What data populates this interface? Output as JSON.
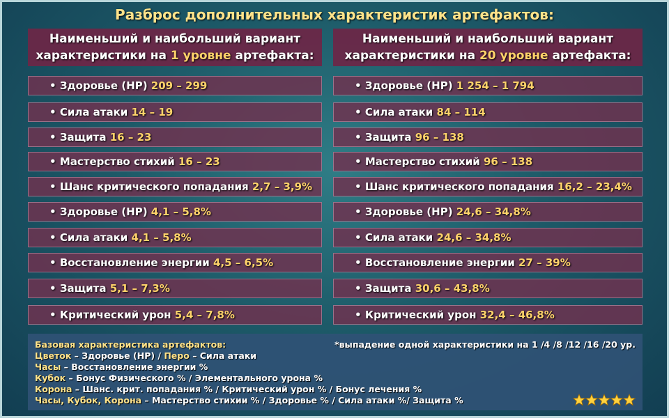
{
  "title": "Разброс дополнительных характеристик артефактов:",
  "columns": [
    {
      "heading": [
        "Наименьший и наибольший вариант",
        "характеристики на",
        "1 уровне",
        "артефакта:"
      ],
      "rows": [
        {
          "label": "Здоровье (HP)",
          "value": "209 – 299"
        },
        {
          "label": "Сила атаки",
          "value": "14 – 19"
        },
        {
          "label": "Защита",
          "value": "16 – 23"
        },
        {
          "label": "Мастерство стихий",
          "value": "16 – 23"
        },
        {
          "label": "Шанс критического попадания",
          "value": "2,7 – 3,9%"
        },
        {
          "label": "Здоровье (HP)",
          "value": "4,1 – 5,8%"
        },
        {
          "label": "Сила атаки",
          "value": "4,1 – 5,8%"
        },
        {
          "label": "Восстановление энергии",
          "value": "4,5 – 6,5%"
        },
        {
          "label": "Защита",
          "value": "5,1 – 7,3%"
        },
        {
          "label": "Критический урон",
          "value": "5,4 – 7,8%"
        }
      ]
    },
    {
      "heading": [
        "Наименьший и наибольший вариант",
        "характеристики на",
        "20 уровне",
        "артефакта:"
      ],
      "rows": [
        {
          "label": "Здоровье (HP)",
          "value": "1 254 – 1 794"
        },
        {
          "label": "Сила атаки",
          "value": "84 – 114"
        },
        {
          "label": "Защита",
          "value": "96 – 138"
        },
        {
          "label": "Мастерство стихий",
          "value": "96 – 138"
        },
        {
          "label": "Шанс критического попадания",
          "value": "16,2 – 23,4%"
        },
        {
          "label": "Здоровье (HP)",
          "value": "24,6 – 34,8%"
        },
        {
          "label": "Сила атаки",
          "value": "24,6 – 34,8%"
        },
        {
          "label": "Восстановление энергии",
          "value": "27 – 39%"
        },
        {
          "label": "Защита",
          "value": "30,6 – 43,8%"
        },
        {
          "label": "Критический урон",
          "value": "32,4 – 46,8%"
        }
      ]
    }
  ],
  "footer": {
    "heading": "Базовая характеристика артефактов:",
    "lines": [
      [
        "Цветок",
        "– Здоровье (HP) /",
        "Перо",
        "– Сила атаки"
      ],
      [
        "Часы",
        "– Восстановление энергии %"
      ],
      [
        "Кубок",
        "– Бонус Физического % / Элементального урона %"
      ],
      [
        "Корона",
        "– Шанс. крит. попадания % / Критический урон % / Бонус лечения %"
      ],
      [
        "Часы, Кубок, Корона",
        "– Мастерство стихии % / Здоровье % / Сила атаки %/ Защита %"
      ]
    ],
    "note": "*выпадение одной характеристики на 1 /4 /8 /12 /16 /20 ур."
  }
}
